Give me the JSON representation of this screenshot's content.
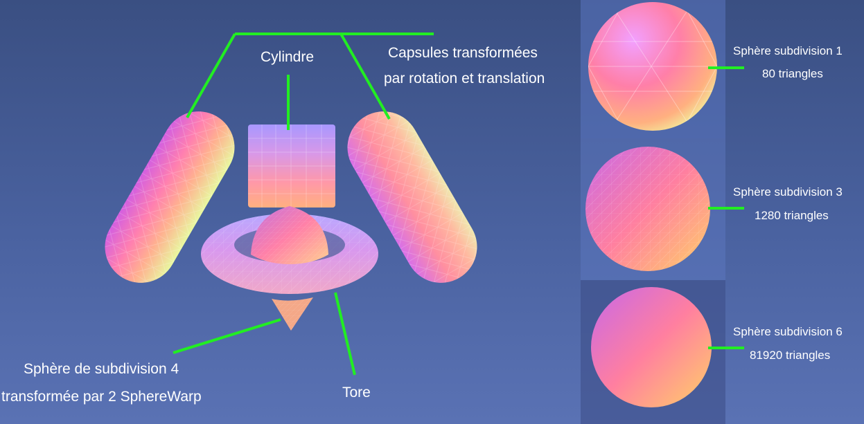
{
  "labels": {
    "cylinder": "Cylindre",
    "capsules_line1": "Capsules transformées",
    "capsules_line2": "par rotation et translation",
    "sphere_warp_line1": "Sphère de subdivision 4",
    "sphere_warp_line2": "transformée par 2 SphereWarp",
    "torus": "Tore"
  },
  "spheres": [
    {
      "title": "Sphère subdivision 1",
      "triangles": "80 triangles"
    },
    {
      "title": "Sphère subdivision 3",
      "triangles": "1280 triangles"
    },
    {
      "title": "Sphère subdivision 6",
      "triangles": "81920 triangles"
    }
  ],
  "colors": {
    "leader_line": "#22ee22",
    "label_text": "#ffffff",
    "background_top": "#3a4f82",
    "background_bottom": "#5a72b4",
    "mesh_magenta": "#e070e8",
    "mesh_pink": "#ff8fa0",
    "mesh_peach": "#ffc090",
    "mesh_lime": "#e8ff9a",
    "mesh_lavender": "#a898ff"
  }
}
